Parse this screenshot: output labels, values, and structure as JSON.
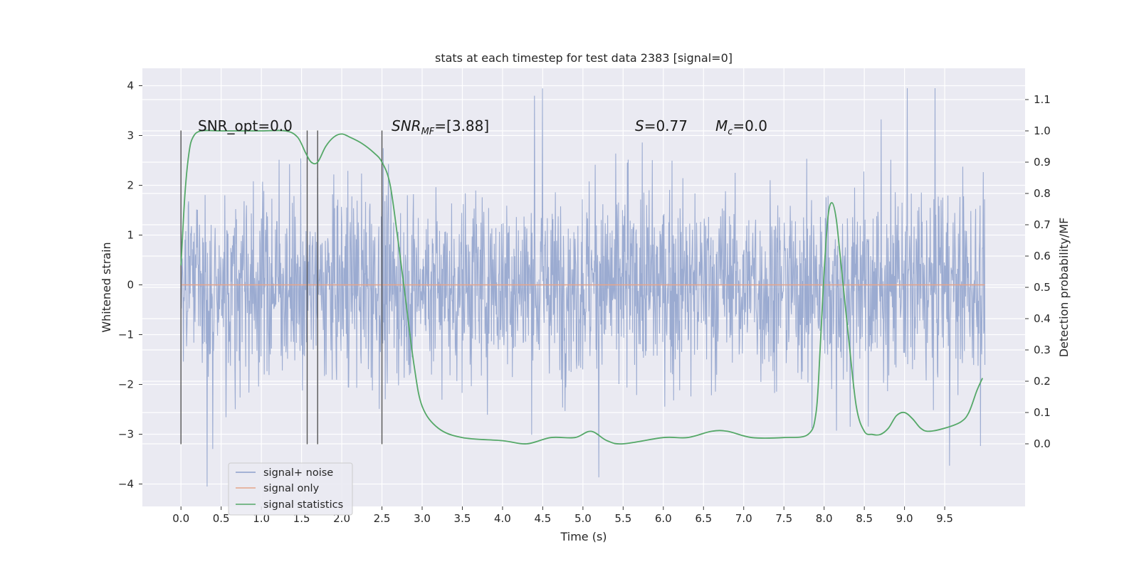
{
  "chart_data": {
    "type": "line",
    "title": "stats at each timestep for test data 2383 [signal=0]",
    "xlabel": "Time (s)",
    "ylabel_left": "Whitened strain",
    "ylabel_right": "Detection probability/MF",
    "xlim": [
      -0.48,
      10.5
    ],
    "ylim_left": [
      -4.45,
      4.35
    ],
    "ylim_right": [
      -0.2,
      1.2
    ],
    "x_ticks": [
      "0.0",
      "0.5",
      "1.0",
      "1.5",
      "2.0",
      "2.5",
      "3.0",
      "3.5",
      "4.0",
      "4.5",
      "5.0",
      "5.5",
      "6.0",
      "6.5",
      "7.0",
      "7.5",
      "8.0",
      "8.5",
      "9.0",
      "9.5"
    ],
    "y_ticks_left": [
      "−4",
      "−3",
      "−2",
      "−1",
      "0",
      "1",
      "2",
      "3",
      "4"
    ],
    "y_ticks_right": [
      "0.0",
      "0.1",
      "0.2",
      "0.3",
      "0.4",
      "0.5",
      "0.6",
      "0.7",
      "0.8",
      "0.9",
      "1.0",
      "1.1"
    ],
    "grid": true,
    "legend_position": "lower-left",
    "annotations": {
      "snr_opt": "SNR_opt=0.0",
      "snr_mf_prefix": "SNR",
      "snr_mf_sub": "MF",
      "snr_mf_value": "=[3.88]",
      "s_prefix": "S",
      "s_value": "=0.77",
      "mc_prefix": "M",
      "mc_sub": "c",
      "mc_value": "=0.0"
    },
    "vertical_lines_x": [
      0.0,
      1.57,
      1.7,
      2.5
    ],
    "vertical_lines_range": [
      -3.2,
      3.1
    ],
    "series": [
      {
        "name": "signal+ noise",
        "color": "#8da0cb",
        "kind": "noise",
        "x_range": [
          0.0,
          10.0
        ],
        "typical_amplitude": [
          -1.9,
          2.9
        ],
        "peak_max": 3.95,
        "peak_min": -4.05
      },
      {
        "name": "signal only",
        "color": "#e5a48a",
        "kind": "line",
        "x": [
          0.0,
          10.0
        ],
        "y": [
          0.0,
          0.0
        ]
      },
      {
        "name": "signal statistics",
        "color": "#55a868",
        "kind": "line",
        "axis": "right",
        "x": [
          0.0,
          0.05,
          0.1,
          0.15,
          0.25,
          0.5,
          1.0,
          1.3,
          1.45,
          1.55,
          1.62,
          1.7,
          1.8,
          1.9,
          2.0,
          2.1,
          2.25,
          2.4,
          2.5,
          2.6,
          2.7,
          2.8,
          2.9,
          3.0,
          3.2,
          3.5,
          4.0,
          4.3,
          4.6,
          4.9,
          5.1,
          5.3,
          5.5,
          6.0,
          6.3,
          6.6,
          6.8,
          7.1,
          7.5,
          7.8,
          7.9,
          7.95,
          8.0,
          8.05,
          8.1,
          8.15,
          8.2,
          8.3,
          8.4,
          8.5,
          8.6,
          8.7,
          8.8,
          8.9,
          9.0,
          9.1,
          9.2,
          9.3,
          9.5,
          9.7,
          9.8,
          9.9,
          9.97
        ],
        "y": [
          0.57,
          0.8,
          0.93,
          0.98,
          1.0,
          1.0,
          1.0,
          1.0,
          0.98,
          0.93,
          0.9,
          0.9,
          0.95,
          0.98,
          0.99,
          0.98,
          0.96,
          0.93,
          0.9,
          0.83,
          0.65,
          0.45,
          0.25,
          0.12,
          0.05,
          0.02,
          0.01,
          0.0,
          0.02,
          0.02,
          0.04,
          0.01,
          0.0,
          0.02,
          0.02,
          0.04,
          0.04,
          0.02,
          0.02,
          0.03,
          0.1,
          0.3,
          0.55,
          0.73,
          0.77,
          0.72,
          0.6,
          0.35,
          0.12,
          0.04,
          0.03,
          0.03,
          0.05,
          0.09,
          0.1,
          0.08,
          0.05,
          0.04,
          0.05,
          0.07,
          0.1,
          0.17,
          0.21
        ]
      }
    ]
  }
}
